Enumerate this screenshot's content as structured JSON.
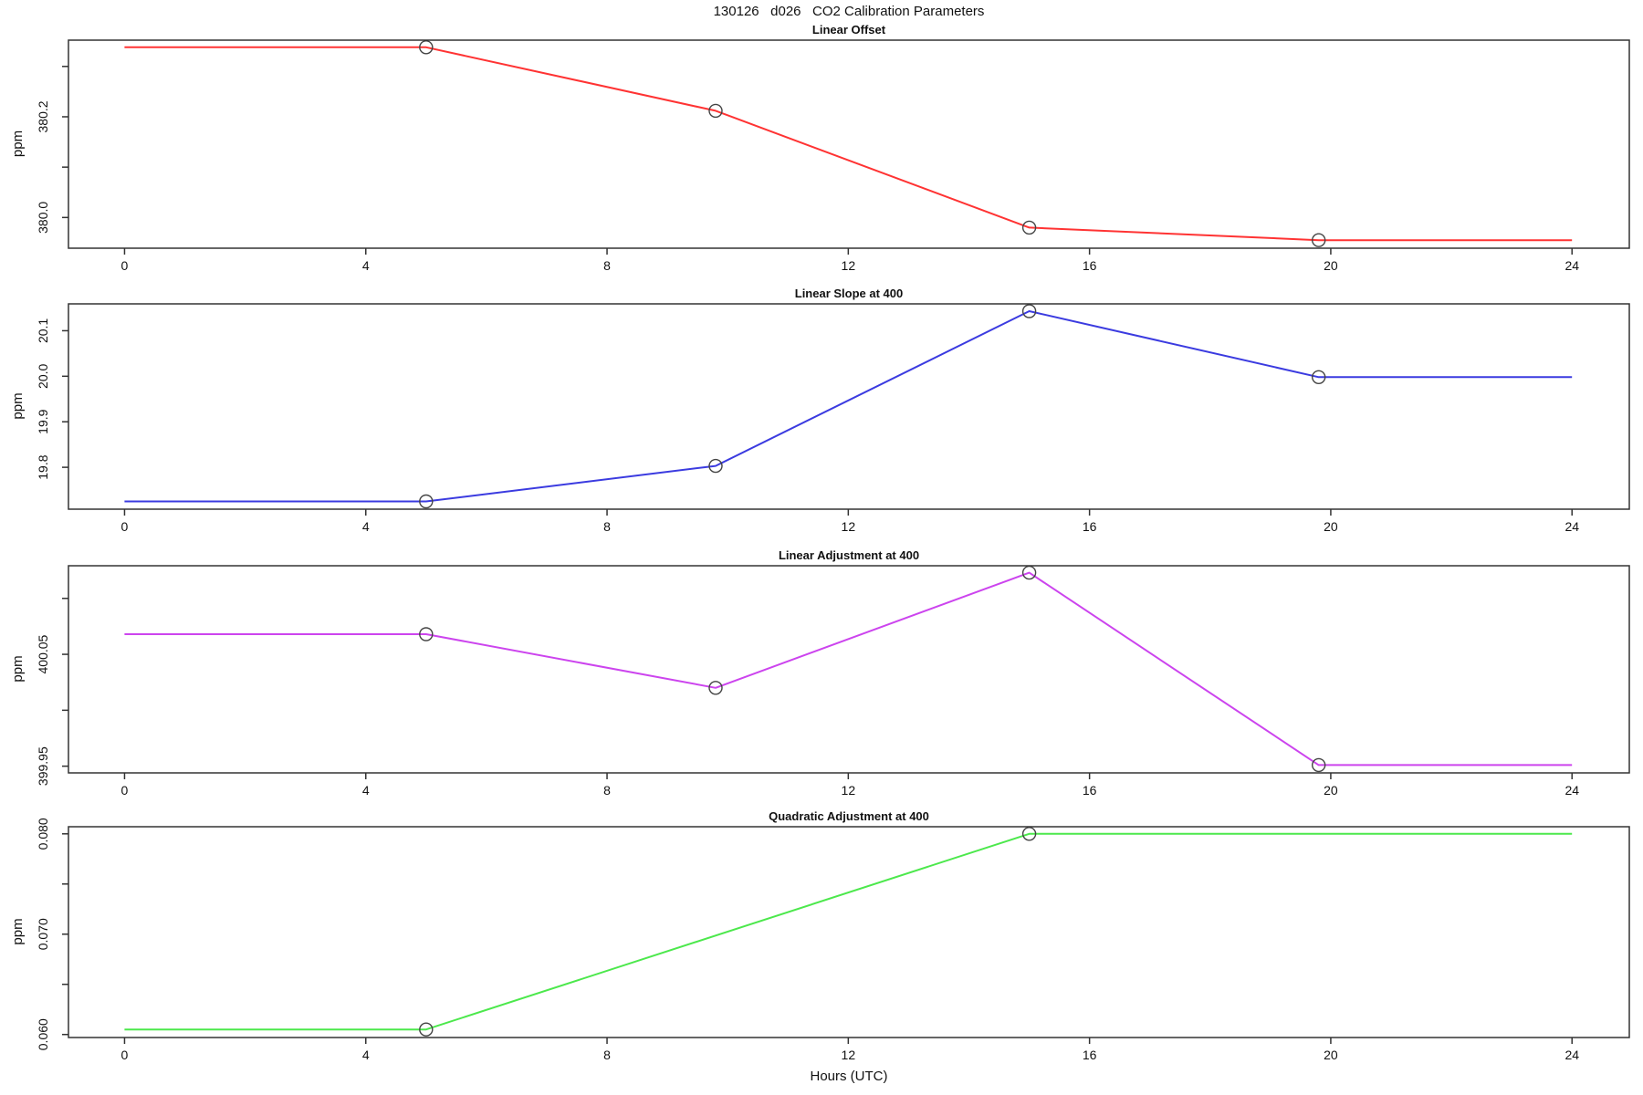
{
  "page_title": "130126   d026   CO2 Calibration Parameters",
  "x_axis_label": "Hours (UTC)",
  "style": {
    "axis_color": "#333333",
    "tick_text_color": "#111111",
    "marker_stroke_color": "#444444"
  },
  "chart_data": [
    {
      "type": "line",
      "title": "Linear Offset",
      "ylabel": "ppm",
      "color": "#ff3333",
      "x": [
        0,
        5,
        9.8,
        15,
        19.8,
        24
      ],
      "y": [
        380.338,
        380.338,
        380.212,
        379.98,
        379.955,
        379.955
      ],
      "markers_x": [
        5,
        9.8,
        15,
        19.8
      ],
      "markers_y": [
        380.338,
        380.212,
        379.98,
        379.955
      ],
      "xlim": [
        -0.93,
        24.95
      ],
      "ylim": [
        379.939,
        380.354
      ],
      "xticks": [
        0,
        4,
        8,
        12,
        16,
        20,
        24
      ],
      "xtick_labels": [
        "0",
        "4",
        "8",
        "12",
        "16",
        "20",
        "24"
      ],
      "yticks": [
        380.0,
        380.1,
        380.2,
        380.3
      ],
      "ytick_labels": [
        "380.0",
        "",
        "380.2",
        ""
      ],
      "grid": false,
      "legend": null
    },
    {
      "type": "line",
      "title": "Linear Slope at 400",
      "ylabel": "ppm",
      "color": "#3b3be0",
      "x": [
        0,
        5,
        9.8,
        15,
        19.8,
        24
      ],
      "y": [
        19.725,
        19.725,
        19.803,
        20.143,
        19.998,
        19.998
      ],
      "markers_x": [
        5,
        9.8,
        15,
        19.8
      ],
      "markers_y": [
        19.725,
        19.803,
        20.143,
        19.998
      ],
      "xlim": [
        -0.93,
        24.95
      ],
      "ylim": [
        19.708,
        20.161
      ],
      "xticks": [
        0,
        4,
        8,
        12,
        16,
        20,
        24
      ],
      "xtick_labels": [
        "0",
        "4",
        "8",
        "12",
        "16",
        "20",
        "24"
      ],
      "yticks": [
        19.8,
        19.9,
        20.0,
        20.1
      ],
      "ytick_labels": [
        "19.8",
        "19.9",
        "20.0",
        "20.1"
      ],
      "grid": false,
      "legend": null
    },
    {
      "type": "line",
      "title": "Linear Adjustment at 400",
      "ylabel": "ppm",
      "color": "#cc44ee",
      "x": [
        0,
        5,
        9.8,
        15,
        19.8,
        24
      ],
      "y": [
        400.068,
        400.068,
        400.02,
        400.123,
        399.951,
        399.951
      ],
      "markers_x": [
        5,
        9.8,
        15,
        19.8
      ],
      "markers_y": [
        400.068,
        400.02,
        400.123,
        399.951
      ],
      "xlim": [
        -0.93,
        24.95
      ],
      "ylim": [
        399.944,
        400.13
      ],
      "xticks": [
        0,
        4,
        8,
        12,
        16,
        20,
        24
      ],
      "xtick_labels": [
        "0",
        "4",
        "8",
        "12",
        "16",
        "20",
        "24"
      ],
      "yticks": [
        399.95,
        400.0,
        400.05,
        400.1
      ],
      "ytick_labels": [
        "399.95",
        "",
        "400.05",
        ""
      ],
      "grid": false,
      "legend": null
    },
    {
      "type": "line",
      "title": "Quadratic Adjustment at 400",
      "ylabel": "ppm",
      "color": "#4ce84c",
      "x": [
        0,
        5,
        15,
        24
      ],
      "y": [
        0.0605,
        0.0605,
        0.08,
        0.08
      ],
      "markers_x": [
        5,
        15
      ],
      "markers_y": [
        0.0605,
        0.08
      ],
      "xlim": [
        -0.93,
        24.95
      ],
      "ylim": [
        0.0597,
        0.0808
      ],
      "xticks": [
        0,
        4,
        8,
        12,
        16,
        20,
        24
      ],
      "xtick_labels": [
        "0",
        "4",
        "8",
        "12",
        "16",
        "20",
        "24"
      ],
      "yticks": [
        0.06,
        0.065,
        0.07,
        0.075,
        0.08
      ],
      "ytick_labels": [
        "0.060",
        "",
        "0.070",
        "",
        "0.080"
      ],
      "grid": false,
      "legend": null
    }
  ]
}
